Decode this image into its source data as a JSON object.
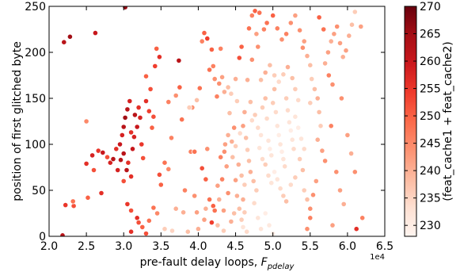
{
  "chart_data": {
    "type": "scatter",
    "xlabel": "pre-fault delay loops, ",
    "xlabel_symbol": "F",
    "xlabel_subscript": "pdelay",
    "x_multiplier_label": "1e4",
    "ylabel": "position of first glitched byte",
    "colorbar_label": "(feat_cache1 + feat_cache2)",
    "xlim": [
      2.0,
      6.5
    ],
    "ylim": [
      0,
      250
    ],
    "clim": [
      228,
      270
    ],
    "x_ticks": [
      2.0,
      2.5,
      3.0,
      3.5,
      4.0,
      4.5,
      5.0,
      5.5,
      6.0,
      6.5
    ],
    "x_tick_labels": [
      "2.0",
      "2.5",
      "3.0",
      "3.5",
      "4.0",
      "4.5",
      "5.0",
      "5.5",
      "6.0",
      "6.5"
    ],
    "y_ticks": [
      0,
      50,
      100,
      150,
      200,
      250
    ],
    "y_tick_labels": [
      "0",
      "50",
      "100",
      "150",
      "200",
      "250"
    ],
    "colorbar_ticks": [
      230,
      235,
      240,
      245,
      250,
      255,
      260,
      265,
      270
    ],
    "colorbar_tick_labels": [
      "230",
      "235",
      "240",
      "245",
      "250",
      "255",
      "260",
      "265",
      "270"
    ],
    "colormap": "Reds",
    "colormap_stops": [
      "#fff5f0",
      "#fee0d2",
      "#fcbba1",
      "#fc9272",
      "#fb6a4a",
      "#ef3b2c",
      "#cb181d",
      "#a50f15",
      "#67000d"
    ],
    "marker_edge_color": "#ffffff",
    "grid": false,
    "points": [
      [
        2.2,
        211,
        262
      ],
      [
        2.28,
        217,
        265
      ],
      [
        2.62,
        221,
        260
      ],
      [
        3.02,
        249,
        266
      ],
      [
        2.22,
        34,
        255
      ],
      [
        2.33,
        33,
        252
      ],
      [
        2.32,
        38,
        248
      ],
      [
        2.52,
        42,
        250
      ],
      [
        2.7,
        47,
        256
      ],
      [
        2.18,
        1,
        262
      ],
      [
        2.5,
        125,
        245
      ],
      [
        2.5,
        79,
        256
      ],
      [
        2.58,
        88,
        258
      ],
      [
        2.66,
        93,
        255
      ],
      [
        2.72,
        91,
        260
      ],
      [
        2.78,
        86,
        252
      ],
      [
        2.82,
        80,
        258
      ],
      [
        2.86,
        84,
        262
      ],
      [
        2.9,
        95,
        256
      ],
      [
        2.96,
        83,
        262
      ],
      [
        2.98,
        110,
        258
      ],
      [
        2.95,
        100,
        260
      ],
      [
        3.0,
        119,
        262
      ],
      [
        3.02,
        129,
        265
      ],
      [
        3.05,
        138,
        262
      ],
      [
        3.08,
        147,
        258
      ],
      [
        3.1,
        113,
        256
      ],
      [
        3.12,
        95,
        260
      ],
      [
        3.0,
        90,
        262
      ],
      [
        3.06,
        80,
        256
      ],
      [
        3.14,
        108,
        258
      ],
      [
        3.15,
        132,
        262
      ],
      [
        3.18,
        119,
        260
      ],
      [
        3.2,
        140,
        256
      ],
      [
        3.22,
        129,
        258
      ],
      [
        3.24,
        100,
        255
      ],
      [
        3.26,
        85,
        252
      ],
      [
        3.3,
        147,
        256
      ],
      [
        3.34,
        136,
        254
      ],
      [
        3.36,
        160,
        252
      ],
      [
        3.38,
        118,
        250
      ],
      [
        3.4,
        130,
        252
      ],
      [
        3.3,
        174,
        250
      ],
      [
        3.42,
        185,
        254
      ],
      [
        3.44,
        204,
        250
      ],
      [
        3.48,
        195,
        256
      ],
      [
        3.04,
        72,
        262
      ],
      [
        2.92,
        72,
        258
      ],
      [
        3.1,
        65,
        256
      ],
      [
        3.0,
        60,
        252
      ],
      [
        2.6,
        72,
        252
      ],
      [
        3.05,
        35,
        255
      ],
      [
        3.1,
        28,
        252
      ],
      [
        3.18,
        20,
        256
      ],
      [
        3.2,
        15,
        252
      ],
      [
        3.25,
        10,
        250
      ],
      [
        3.1,
        5,
        256
      ],
      [
        3.3,
        3,
        252
      ],
      [
        3.34,
        17,
        248
      ],
      [
        3.4,
        31,
        248
      ],
      [
        3.45,
        25,
        245
      ],
      [
        3.5,
        56,
        250
      ],
      [
        3.48,
        67,
        252
      ],
      [
        3.55,
        80,
        248
      ],
      [
        3.6,
        73,
        245
      ],
      [
        3.6,
        146,
        246
      ],
      [
        3.7,
        153,
        244
      ],
      [
        3.74,
        191,
        262
      ],
      [
        3.75,
        162,
        250
      ],
      [
        3.78,
        127,
        248
      ],
      [
        3.82,
        50,
        246
      ],
      [
        3.8,
        26,
        240
      ],
      [
        3.86,
        5,
        238
      ],
      [
        3.9,
        92,
        246
      ],
      [
        3.95,
        92,
        248
      ],
      [
        3.55,
        8,
        236
      ],
      [
        3.65,
        6,
        235
      ],
      [
        3.7,
        30,
        240
      ],
      [
        3.92,
        140,
        244
      ],
      [
        3.64,
        107,
        246
      ],
      [
        4.02,
        161,
        248
      ],
      [
        4.05,
        212,
        246
      ],
      [
        4.08,
        221,
        250
      ],
      [
        4.12,
        215,
        254
      ],
      [
        4.15,
        181,
        248
      ],
      [
        4.18,
        203,
        250
      ],
      [
        4.2,
        185,
        246
      ],
      [
        4.22,
        171,
        244
      ],
      [
        4.25,
        152,
        246
      ],
      [
        4.28,
        166,
        244
      ],
      [
        4.3,
        204,
        246
      ],
      [
        4.32,
        173,
        242
      ],
      [
        4.35,
        157,
        240
      ],
      [
        4.1,
        62,
        250
      ],
      [
        4.05,
        74,
        252
      ],
      [
        4.15,
        40,
        248
      ],
      [
        4.2,
        33,
        250
      ],
      [
        4.18,
        15,
        254
      ],
      [
        4.22,
        28,
        248
      ],
      [
        4.3,
        86,
        246
      ],
      [
        4.35,
        92,
        244
      ],
      [
        4.32,
        62,
        246
      ],
      [
        4.4,
        47,
        244
      ],
      [
        4.38,
        76,
        242
      ],
      [
        4.45,
        103,
        240
      ],
      [
        4.48,
        118,
        244
      ],
      [
        4.5,
        61,
        242
      ],
      [
        4.52,
        44,
        240
      ],
      [
        4.55,
        30,
        238
      ],
      [
        4.58,
        18,
        236
      ],
      [
        4.6,
        10,
        232
      ],
      [
        4.62,
        26,
        236
      ],
      [
        4.65,
        5,
        234
      ],
      [
        4.55,
        194,
        252
      ],
      [
        4.58,
        206,
        250
      ],
      [
        4.68,
        226,
        248
      ],
      [
        4.72,
        240,
        246
      ],
      [
        4.76,
        245,
        250
      ],
      [
        4.82,
        243,
        248
      ],
      [
        4.78,
        220,
        242
      ],
      [
        4.8,
        206,
        244
      ],
      [
        4.72,
        192,
        244
      ],
      [
        4.66,
        170,
        240
      ],
      [
        4.7,
        146,
        238
      ],
      [
        4.62,
        135,
        240
      ],
      [
        4.6,
        120,
        242
      ],
      [
        4.64,
        107,
        238
      ],
      [
        4.66,
        94,
        236
      ],
      [
        4.68,
        82,
        238
      ],
      [
        4.7,
        70,
        240
      ],
      [
        4.74,
        60,
        238
      ],
      [
        4.78,
        50,
        236
      ],
      [
        4.75,
        36,
        234
      ],
      [
        4.8,
        20,
        232
      ],
      [
        4.84,
        8,
        232
      ],
      [
        4.9,
        25,
        230
      ],
      [
        4.95,
        12,
        231
      ],
      [
        5.0,
        3,
        230
      ],
      [
        4.6,
        40,
        240
      ],
      [
        4.72,
        126,
        234
      ],
      [
        4.76,
        132,
        236
      ],
      [
        4.8,
        118,
        234
      ],
      [
        4.84,
        110,
        232
      ],
      [
        4.86,
        140,
        236
      ],
      [
        4.9,
        150,
        238
      ],
      [
        4.92,
        128,
        234
      ],
      [
        4.94,
        104,
        232
      ],
      [
        4.96,
        95,
        230
      ],
      [
        4.98,
        88,
        232
      ],
      [
        5.0,
        145,
        236
      ],
      [
        5.02,
        160,
        238
      ],
      [
        5.04,
        135,
        234
      ],
      [
        5.06,
        120,
        232
      ],
      [
        5.08,
        110,
        230
      ],
      [
        5.1,
        100,
        232
      ],
      [
        5.12,
        92,
        230
      ],
      [
        5.14,
        84,
        232
      ],
      [
        5.16,
        76,
        234
      ],
      [
        5.18,
        150,
        236
      ],
      [
        5.2,
        137,
        234
      ],
      [
        5.22,
        124,
        232
      ],
      [
        5.24,
        115,
        230
      ],
      [
        5.26,
        105,
        232
      ],
      [
        5.28,
        95,
        234
      ],
      [
        4.82,
        96,
        232
      ],
      [
        4.86,
        84,
        234
      ],
      [
        4.9,
        78,
        236
      ],
      [
        4.94,
        66,
        234
      ],
      [
        4.98,
        58,
        232
      ],
      [
        5.02,
        70,
        230
      ],
      [
        5.06,
        62,
        232
      ],
      [
        5.1,
        52,
        234
      ],
      [
        5.14,
        44,
        236
      ],
      [
        5.18,
        38,
        238
      ],
      [
        4.84,
        170,
        238
      ],
      [
        4.9,
        178,
        240
      ],
      [
        4.96,
        186,
        238
      ],
      [
        5.02,
        175,
        236
      ],
      [
        5.08,
        168,
        234
      ],
      [
        5.14,
        176,
        236
      ],
      [
        5.2,
        184,
        240
      ],
      [
        5.26,
        172,
        238
      ],
      [
        5.3,
        160,
        236
      ],
      [
        5.34,
        148,
        234
      ],
      [
        5.3,
        130,
        232
      ],
      [
        5.34,
        118,
        230
      ],
      [
        5.38,
        106,
        232
      ],
      [
        5.42,
        95,
        234
      ],
      [
        5.36,
        84,
        236
      ],
      [
        5.4,
        72,
        238
      ],
      [
        5.3,
        64,
        236
      ],
      [
        5.24,
        56,
        234
      ],
      [
        5.42,
        50,
        236
      ],
      [
        5.46,
        40,
        238
      ],
      [
        4.88,
        225,
        246
      ],
      [
        4.92,
        232,
        248
      ],
      [
        5.0,
        240,
        250
      ],
      [
        5.06,
        226,
        246
      ],
      [
        5.12,
        214,
        244
      ],
      [
        5.18,
        220,
        246
      ],
      [
        5.24,
        232,
        244
      ],
      [
        5.3,
        240,
        242
      ],
      [
        5.36,
        224,
        244
      ],
      [
        5.42,
        212,
        242
      ],
      [
        5.46,
        196,
        240
      ],
      [
        5.5,
        186,
        238
      ],
      [
        5.52,
        171,
        236
      ],
      [
        5.56,
        160,
        238
      ],
      [
        5.5,
        145,
        236
      ],
      [
        5.6,
        150,
        240
      ],
      [
        5.62,
        135,
        238
      ],
      [
        5.64,
        120,
        236
      ],
      [
        5.6,
        105,
        240
      ],
      [
        5.66,
        93,
        242
      ],
      [
        5.7,
        82,
        244
      ],
      [
        5.58,
        60,
        242
      ],
      [
        5.54,
        45,
        244
      ],
      [
        5.5,
        20,
        246
      ],
      [
        5.46,
        8,
        244
      ],
      [
        5.7,
        188,
        240
      ],
      [
        5.74,
        200,
        242
      ],
      [
        5.78,
        212,
        240
      ],
      [
        5.82,
        220,
        242
      ],
      [
        5.86,
        228,
        244
      ],
      [
        5.9,
        210,
        242
      ],
      [
        5.94,
        195,
        240
      ],
      [
        5.98,
        202,
        242
      ],
      [
        6.02,
        218,
        240
      ],
      [
        6.06,
        230,
        238
      ],
      [
        6.1,
        244,
        236
      ],
      [
        6.18,
        228,
        242
      ],
      [
        5.75,
        175,
        246
      ],
      [
        5.8,
        165,
        244
      ],
      [
        5.78,
        120,
        246
      ],
      [
        5.85,
        70,
        244
      ],
      [
        5.9,
        50,
        242
      ],
      [
        5.95,
        35,
        240
      ],
      [
        5.8,
        12,
        242
      ],
      [
        5.92,
        150,
        244
      ],
      [
        6.0,
        110,
        242
      ],
      [
        6.05,
        90,
        240
      ],
      [
        6.1,
        70,
        244
      ],
      [
        6.12,
        8,
        256
      ],
      [
        6.2,
        20,
        246
      ],
      [
        5.68,
        225,
        248
      ],
      [
        5.62,
        238,
        250
      ],
      [
        5.4,
        205,
        244
      ],
      [
        5.5,
        30,
        244
      ],
      [
        3.88,
        140,
        236
      ],
      [
        3.98,
        148,
        238
      ],
      [
        4.4,
        162,
        238
      ],
      [
        4.44,
        155,
        236
      ],
      [
        4.5,
        171,
        240
      ],
      [
        4.42,
        134,
        238
      ],
      [
        4.52,
        147,
        236
      ],
      [
        4.56,
        112,
        234
      ],
      [
        4.5,
        98,
        236
      ],
      [
        4.46,
        86,
        238
      ],
      [
        4.54,
        78,
        240
      ],
      [
        4.58,
        66,
        238
      ],
      [
        4.62,
        56,
        236
      ],
      [
        4.4,
        110,
        240
      ],
      [
        4.36,
        100,
        242
      ],
      [
        3.95,
        44,
        244
      ],
      [
        3.98,
        26,
        242
      ],
      [
        4.0,
        8,
        240
      ],
      [
        4.08,
        18,
        242
      ],
      [
        4.1,
        30,
        240
      ],
      [
        4.12,
        95,
        244
      ],
      [
        4.26,
        55,
        242
      ],
      [
        4.28,
        40,
        240
      ],
      [
        4.34,
        28,
        242
      ],
      [
        4.44,
        16,
        240
      ],
      [
        4.26,
        12,
        238
      ],
      [
        4.34,
        6,
        236
      ],
      [
        4.48,
        25,
        238
      ]
    ]
  }
}
